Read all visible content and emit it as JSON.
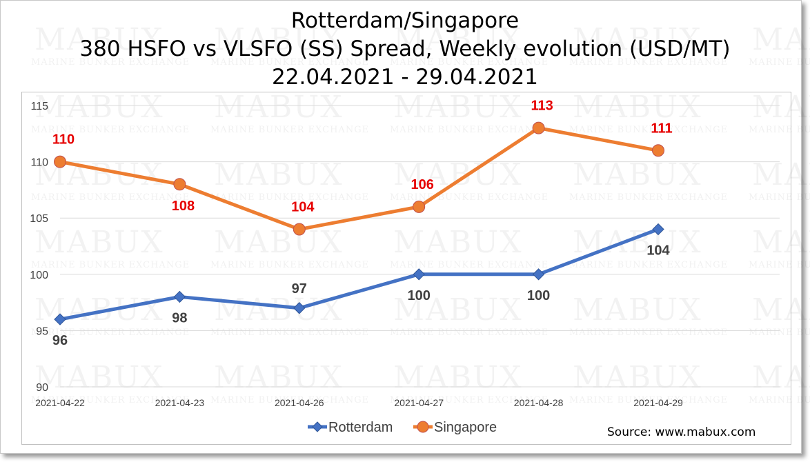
{
  "title_lines": [
    "Rotterdam/Singapore",
    "380 HSFO vs VLSFO (SS) Spread, Weekly evolution (USD/MT)",
    "22.04.2021 - 29.04.2021"
  ],
  "source": "Source: www.mabux.com",
  "watermark": {
    "name": "MABUX",
    "subtitle": "MARINE BUNKER EXCHANGE"
  },
  "colors": {
    "rotterdam": "#4472c4",
    "singapore": "#ed7d31",
    "singapore_labels": "#e60000",
    "grid": "#d9d9d9"
  },
  "chart_data": {
    "type": "line",
    "title": "Rotterdam/Singapore 380 HSFO vs VLSFO (SS) Spread, Weekly evolution (USD/MT) 22.04.2021 - 29.04.2021",
    "categories": [
      "2021-04-22",
      "2021-04-23",
      "2021-04-26",
      "2021-04-27",
      "2021-04-28",
      "2021-04-29"
    ],
    "series": [
      {
        "name": "Rotterdam",
        "marker": "diamond",
        "values": [
          96,
          98,
          97,
          100,
          100,
          104
        ]
      },
      {
        "name": "Singapore",
        "marker": "circle",
        "values": [
          110,
          108,
          104,
          106,
          113,
          111
        ]
      }
    ],
    "ylim": [
      90,
      115
    ],
    "yticks": [
      90,
      95,
      100,
      105,
      110,
      115
    ],
    "grid": true,
    "legend": "bottom-center",
    "xlabel": "",
    "ylabel": ""
  }
}
